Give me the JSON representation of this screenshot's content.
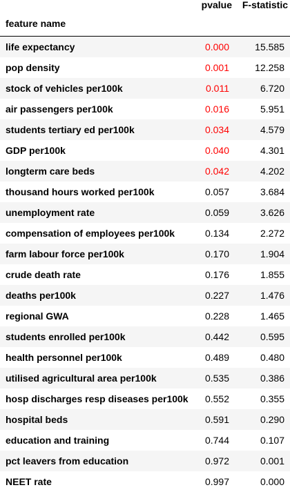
{
  "table": {
    "columns": {
      "pvalue": "pvalue",
      "fstat": "F-statistic"
    },
    "index_label": "feature name",
    "highlight_color": "#ff0000",
    "rows": [
      {
        "name": "life expectancy",
        "pvalue": "0.000",
        "fstat": "15.585",
        "significant": true
      },
      {
        "name": "pop density",
        "pvalue": "0.001",
        "fstat": "12.258",
        "significant": true
      },
      {
        "name": "stock of vehicles per100k",
        "pvalue": "0.011",
        "fstat": "6.720",
        "significant": true
      },
      {
        "name": "air passengers per100k",
        "pvalue": "0.016",
        "fstat": "5.951",
        "significant": true
      },
      {
        "name": "students tertiary ed per100k",
        "pvalue": "0.034",
        "fstat": "4.579",
        "significant": true
      },
      {
        "name": "GDP per100k",
        "pvalue": "0.040",
        "fstat": "4.301",
        "significant": true
      },
      {
        "name": "longterm care beds",
        "pvalue": "0.042",
        "fstat": "4.202",
        "significant": true
      },
      {
        "name": "thousand hours worked per100k",
        "pvalue": "0.057",
        "fstat": "3.684",
        "significant": false
      },
      {
        "name": "unemployment rate",
        "pvalue": "0.059",
        "fstat": "3.626",
        "significant": false
      },
      {
        "name": "compensation of employees per100k",
        "pvalue": "0.134",
        "fstat": "2.272",
        "significant": false
      },
      {
        "name": "farm labour force per100k",
        "pvalue": "0.170",
        "fstat": "1.904",
        "significant": false
      },
      {
        "name": "crude death rate",
        "pvalue": "0.176",
        "fstat": "1.855",
        "significant": false
      },
      {
        "name": "deaths per100k",
        "pvalue": "0.227",
        "fstat": "1.476",
        "significant": false
      },
      {
        "name": "regional GWA",
        "pvalue": "0.228",
        "fstat": "1.465",
        "significant": false
      },
      {
        "name": "students enrolled per100k",
        "pvalue": "0.442",
        "fstat": "0.595",
        "significant": false
      },
      {
        "name": "health personnel per100k",
        "pvalue": "0.489",
        "fstat": "0.480",
        "significant": false
      },
      {
        "name": "utilised agricultural area per100k",
        "pvalue": "0.535",
        "fstat": "0.386",
        "significant": false
      },
      {
        "name": "hosp discharges resp diseases per100k",
        "pvalue": "0.552",
        "fstat": "0.355",
        "significant": false
      },
      {
        "name": "hospital beds",
        "pvalue": "0.591",
        "fstat": "0.290",
        "significant": false
      },
      {
        "name": "education and training",
        "pvalue": "0.744",
        "fstat": "0.107",
        "significant": false
      },
      {
        "name": "pct leavers from education",
        "pvalue": "0.972",
        "fstat": "0.001",
        "significant": false
      },
      {
        "name": "NEET rate",
        "pvalue": "0.997",
        "fstat": "0.000",
        "significant": false
      }
    ]
  }
}
